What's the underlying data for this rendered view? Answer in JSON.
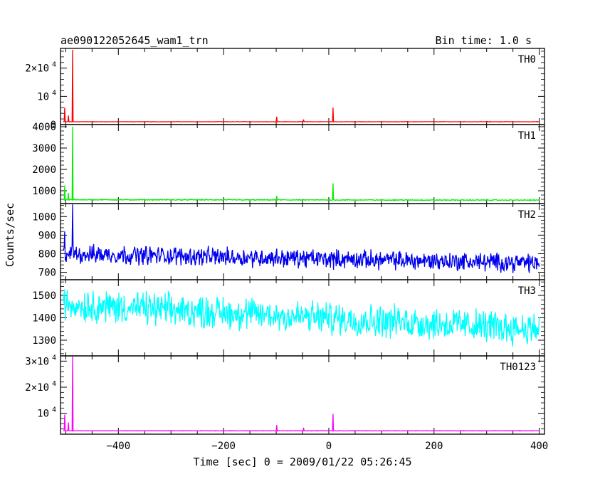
{
  "header": {
    "source_name": "ae090122052645_wam1_trn",
    "bin_time": "Bin time: 1.0 s"
  },
  "chart_data": {
    "type": "line",
    "x_axis": {
      "label": "Time [sec] 0 = 2009/01/22 05:26:45",
      "range": [
        -510,
        410
      ],
      "ticks": [
        -400,
        -200,
        0,
        200,
        400
      ],
      "tick_labels": [
        "−400",
        "−200",
        "0",
        "200",
        "400"
      ]
    },
    "y_axis_label": "Counts/sec",
    "panels": [
      {
        "name": "TH0",
        "color": "#ff0000",
        "ylim": [
          0,
          27000
        ],
        "yticks": [
          {
            "value": 0,
            "base": "0",
            "exp": ""
          },
          {
            "value": 10000,
            "base": "10",
            "exp": "4"
          },
          {
            "value": 20000,
            "base": "2×10",
            "exp": "4"
          }
        ],
        "baseline": 1000,
        "noise": 120,
        "trend": 0,
        "spikes": [
          {
            "x": -502,
            "y": 6000
          },
          {
            "x": -495,
            "y": 3200
          },
          {
            "x": -487,
            "y": 26500
          },
          {
            "x": -99,
            "y": 2800
          },
          {
            "x": -48,
            "y": 1800
          },
          {
            "x": 8,
            "y": 6000
          }
        ]
      },
      {
        "name": "TH1",
        "color": "#00ee00",
        "ylim": [
          400,
          4100
        ],
        "yticks": [
          {
            "value": 1000,
            "base": "1000",
            "exp": ""
          },
          {
            "value": 2000,
            "base": "2000",
            "exp": ""
          },
          {
            "value": 3000,
            "base": "3000",
            "exp": ""
          },
          {
            "value": 4000,
            "base": "4000",
            "exp": ""
          }
        ],
        "baseline": 580,
        "noise": 35,
        "trend": -20,
        "spikes": [
          {
            "x": -502,
            "y": 1250
          },
          {
            "x": -495,
            "y": 900
          },
          {
            "x": -487,
            "y": 4000
          },
          {
            "x": -99,
            "y": 760
          },
          {
            "x": 8,
            "y": 1350
          }
        ]
      },
      {
        "name": "TH2",
        "color": "#0000ee",
        "ylim": [
          660,
          1070
        ],
        "yticks": [
          {
            "value": 700,
            "base": "700",
            "exp": ""
          },
          {
            "value": 800,
            "base": "800",
            "exp": ""
          },
          {
            "value": 900,
            "base": "900",
            "exp": ""
          },
          {
            "value": 1000,
            "base": "1000",
            "exp": ""
          }
        ],
        "baseline": 800,
        "noise": 75,
        "trend": -50,
        "spikes": [
          {
            "x": -502,
            "y": 920
          },
          {
            "x": -487,
            "y": 1065
          }
        ]
      },
      {
        "name": "TH3",
        "color": "#00ffff",
        "ylim": [
          1230,
          1570
        ],
        "yticks": [
          {
            "value": 1300,
            "base": "1300",
            "exp": ""
          },
          {
            "value": 1400,
            "base": "1400",
            "exp": ""
          },
          {
            "value": 1500,
            "base": "1500",
            "exp": ""
          }
        ],
        "baseline": 1460,
        "noise": 110,
        "trend": -110,
        "spikes": []
      },
      {
        "name": "TH0123",
        "color": "#ff00ff",
        "ylim": [
          2000,
          32000
        ],
        "yticks": [
          {
            "value": 10000,
            "base": "10",
            "exp": "4"
          },
          {
            "value": 20000,
            "base": "2×10",
            "exp": "4"
          },
          {
            "value": 30000,
            "base": "3×10",
            "exp": "4"
          }
        ],
        "baseline": 3300,
        "noise": 140,
        "trend": 0,
        "spikes": [
          {
            "x": -502,
            "y": 9500
          },
          {
            "x": -495,
            "y": 6500
          },
          {
            "x": -487,
            "y": 31800
          },
          {
            "x": -99,
            "y": 5500
          },
          {
            "x": -48,
            "y": 4500
          },
          {
            "x": 8,
            "y": 9800
          }
        ]
      }
    ]
  }
}
